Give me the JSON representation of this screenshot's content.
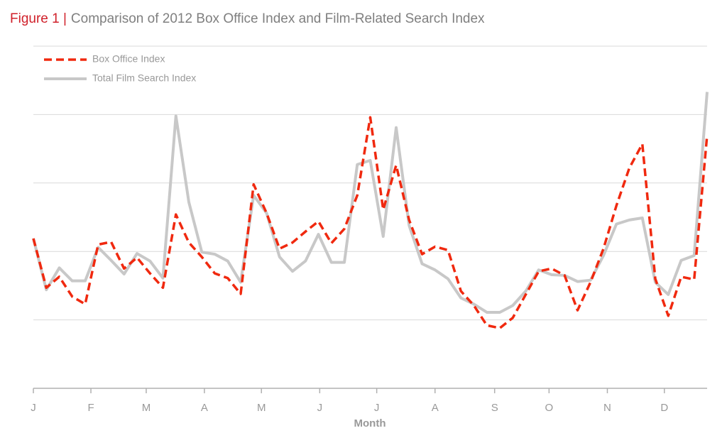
{
  "chart_data": {
    "type": "line",
    "figure_label": "Figure 1 |",
    "title": "Comparison of 2012 Box Office Index and Film-Related Search Index",
    "xlabel": "Month",
    "x": [
      0,
      1,
      2,
      3,
      4,
      5,
      6,
      7,
      8,
      9,
      10,
      11,
      12,
      13,
      14,
      15,
      16,
      17,
      18,
      19,
      20,
      21,
      22,
      23,
      24,
      25,
      26,
      27,
      28,
      29,
      30,
      31,
      32,
      33,
      34,
      35,
      36,
      37,
      38,
      39,
      40,
      41,
      42,
      43,
      44,
      45,
      46,
      47,
      48,
      49,
      50,
      51,
      52
    ],
    "xlim": [
      0,
      52
    ],
    "xticks": [
      {
        "value": 0,
        "label": "J"
      },
      {
        "value": 4.44,
        "label": "F"
      },
      {
        "value": 8.71,
        "label": "M"
      },
      {
        "value": 13.2,
        "label": "A"
      },
      {
        "value": 17.6,
        "label": "M"
      },
      {
        "value": 22.1,
        "label": "J"
      },
      {
        "value": 26.5,
        "label": "J"
      },
      {
        "value": 31.0,
        "label": "A"
      },
      {
        "value": 35.6,
        "label": "S"
      },
      {
        "value": 39.8,
        "label": "O"
      },
      {
        "value": 44.3,
        "label": "N"
      },
      {
        "value": 48.7,
        "label": "D"
      }
    ],
    "ylim": [
      0,
      5
    ],
    "yticks": [
      0,
      1,
      2,
      3,
      4,
      5
    ],
    "grid": true,
    "legend": "top-left",
    "series": [
      {
        "name": "Box Office Index",
        "color": "#f0290f",
        "dashed": true,
        "values": [
          2.19,
          1.47,
          1.63,
          1.34,
          1.23,
          2.1,
          2.14,
          1.75,
          1.91,
          1.68,
          1.47,
          2.54,
          2.13,
          1.92,
          1.68,
          1.61,
          1.38,
          2.98,
          2.56,
          2.04,
          2.13,
          2.29,
          2.44,
          2.12,
          2.33,
          2.82,
          3.96,
          2.61,
          3.26,
          2.46,
          1.96,
          2.07,
          2.02,
          1.42,
          1.21,
          0.92,
          0.88,
          1.03,
          1.37,
          1.71,
          1.75,
          1.65,
          1.14,
          1.55,
          2.04,
          2.67,
          3.22,
          3.57,
          1.6,
          1.06,
          1.63,
          1.59,
          3.7
        ]
      },
      {
        "name": "Total Film Search Index",
        "color": "#c8c8c8",
        "dashed": false,
        "values": [
          2.19,
          1.44,
          1.76,
          1.57,
          1.57,
          2.06,
          1.87,
          1.67,
          1.97,
          1.86,
          1.61,
          3.98,
          2.72,
          1.99,
          1.96,
          1.86,
          1.55,
          2.82,
          2.56,
          1.92,
          1.71,
          1.86,
          2.25,
          1.84,
          1.84,
          3.27,
          3.33,
          2.22,
          3.81,
          2.38,
          1.82,
          1.73,
          1.6,
          1.32,
          1.23,
          1.11,
          1.11,
          1.21,
          1.42,
          1.73,
          1.66,
          1.65,
          1.56,
          1.58,
          1.94,
          2.4,
          2.46,
          2.49,
          1.55,
          1.37,
          1.87,
          1.94,
          4.33
        ]
      }
    ]
  }
}
